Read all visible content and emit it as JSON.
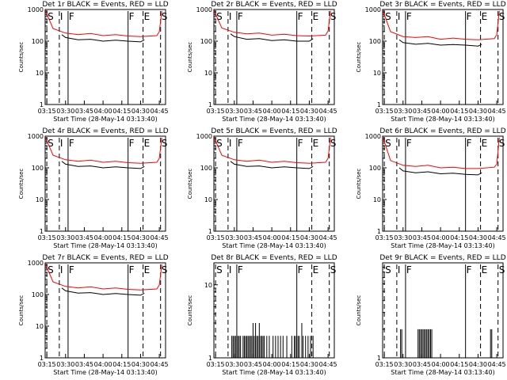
{
  "chart_data": [
    {
      "type": "line",
      "title": "Det 1r BLACK = Events, RED = LLD",
      "ylabel": "Counts/sec",
      "xlabel": "Start Time (28-May-14 03:13:40)",
      "x_ticks": [
        "03:15",
        "03:30",
        "03:45",
        "04:00",
        "04:15",
        "04:30",
        "04:45"
      ],
      "y_ticks": [
        "1",
        "10",
        "100",
        "1000"
      ],
      "ylim": [
        1,
        1000
      ],
      "yscale": "log",
      "markers": [
        {
          "label": "S",
          "style": "dashed",
          "time": "03:15"
        },
        {
          "label": "I",
          "style": "dashed",
          "time": "03:25"
        },
        {
          "label": "F",
          "style": "solid",
          "time": "03:32"
        },
        {
          "label": "F",
          "style": "solid",
          "time": "04:20"
        },
        {
          "label": "E",
          "style": "dashed",
          "time": "04:32"
        },
        {
          "label": "S",
          "style": "dashed",
          "time": "04:46"
        }
      ],
      "series": [
        {
          "name": "Events",
          "color": "#000000",
          "x": [
            "03:27",
            "03:30",
            "03:40",
            "03:50",
            "04:00",
            "04:10",
            "04:20",
            "04:30",
            "04:33"
          ],
          "y": [
            160,
            130,
            110,
            115,
            100,
            108,
            100,
            95,
            110
          ]
        },
        {
          "name": "LLD",
          "color": "#ff0000",
          "x": [
            "03:14",
            "03:20",
            "03:30",
            "03:40",
            "03:50",
            "04:00",
            "04:10",
            "04:20",
            "04:30",
            "04:43",
            "04:45",
            "04:47"
          ],
          "y": [
            900,
            250,
            180,
            160,
            175,
            150,
            160,
            145,
            140,
            150,
            200,
            900
          ]
        }
      ]
    },
    {
      "type": "line",
      "title": "Det 2r BLACK = Events, RED = LLD",
      "ylabel": "Counts/sec",
      "xlabel": "Start Time (28-May-14 03:13:40)",
      "x_ticks": [
        "03:15",
        "03:30",
        "03:45",
        "04:00",
        "04:15",
        "04:30",
        "04:45"
      ],
      "y_ticks": [
        "1",
        "10",
        "100",
        "1000"
      ],
      "ylim": [
        1,
        1000
      ],
      "yscale": "log",
      "markers": [
        {
          "label": "S",
          "style": "dashed",
          "time": "03:15"
        },
        {
          "label": "I",
          "style": "dashed",
          "time": "03:25"
        },
        {
          "label": "F",
          "style": "solid",
          "time": "03:32"
        },
        {
          "label": "F",
          "style": "solid",
          "time": "04:20"
        },
        {
          "label": "E",
          "style": "dashed",
          "time": "04:32"
        },
        {
          "label": "S",
          "style": "dashed",
          "time": "04:46"
        }
      ],
      "series": [
        {
          "name": "Events",
          "color": "#000000",
          "x": [
            "03:27",
            "03:30",
            "03:40",
            "03:50",
            "04:00",
            "04:10",
            "04:20",
            "04:30",
            "04:33"
          ],
          "y": [
            170,
            140,
            115,
            120,
            105,
            110,
            100,
            100,
            120
          ]
        },
        {
          "name": "LLD",
          "color": "#ff0000",
          "x": [
            "03:14",
            "03:20",
            "03:30",
            "03:40",
            "03:50",
            "04:00",
            "04:10",
            "04:20",
            "04:30",
            "04:43",
            "04:45",
            "04:47"
          ],
          "y": [
            900,
            260,
            190,
            170,
            180,
            155,
            165,
            150,
            145,
            155,
            210,
            900
          ]
        }
      ]
    },
    {
      "type": "line",
      "title": "Det 3r BLACK = Events, RED = LLD",
      "ylabel": "Counts/sec",
      "xlabel": "Start Time (28-May-14 03:13:40)",
      "x_ticks": [
        "03:15",
        "03:30",
        "03:45",
        "04:00",
        "04:15",
        "04:30",
        "04:45"
      ],
      "y_ticks": [
        "1",
        "10",
        "100",
        "1000"
      ],
      "ylim": [
        1,
        1000
      ],
      "yscale": "log",
      "markers": [
        {
          "label": "S",
          "style": "dashed",
          "time": "03:15"
        },
        {
          "label": "I",
          "style": "dashed",
          "time": "03:25"
        },
        {
          "label": "F",
          "style": "solid",
          "time": "03:32"
        },
        {
          "label": "F",
          "style": "solid",
          "time": "04:20"
        },
        {
          "label": "E",
          "style": "dashed",
          "time": "04:32"
        },
        {
          "label": "S",
          "style": "dashed",
          "time": "04:46"
        }
      ],
      "series": [
        {
          "name": "Events",
          "color": "#000000",
          "x": [
            "03:27",
            "03:30",
            "03:40",
            "03:50",
            "04:00",
            "04:10",
            "04:20",
            "04:30",
            "04:33"
          ],
          "y": [
            110,
            90,
            80,
            85,
            75,
            78,
            75,
            70,
            80
          ]
        },
        {
          "name": "LLD",
          "color": "#ff0000",
          "x": [
            "03:14",
            "03:20",
            "03:30",
            "03:40",
            "03:50",
            "04:00",
            "04:10",
            "04:20",
            "04:30",
            "04:43",
            "04:45",
            "04:47"
          ],
          "y": [
            900,
            200,
            140,
            130,
            140,
            115,
            125,
            115,
            110,
            120,
            160,
            900
          ]
        }
      ]
    },
    {
      "type": "line",
      "title": "Det 4r BLACK = Events, RED = LLD",
      "ylabel": "Counts/sec",
      "xlabel": "Start Time (28-May-14 03:13:40)",
      "x_ticks": [
        "03:15",
        "03:30",
        "03:45",
        "04:00",
        "04:15",
        "04:30",
        "04:45"
      ],
      "y_ticks": [
        "1",
        "10",
        "100",
        "1000"
      ],
      "ylim": [
        1,
        1000
      ],
      "yscale": "log",
      "markers": [
        {
          "label": "S",
          "style": "dashed",
          "time": "03:15"
        },
        {
          "label": "I",
          "style": "dashed",
          "time": "03:25"
        },
        {
          "label": "F",
          "style": "solid",
          "time": "03:32"
        },
        {
          "label": "F",
          "style": "solid",
          "time": "04:20"
        },
        {
          "label": "E",
          "style": "dashed",
          "time": "04:32"
        },
        {
          "label": "S",
          "style": "dashed",
          "time": "04:46"
        }
      ],
      "series": [
        {
          "name": "Events",
          "color": "#000000",
          "x": [
            "03:27",
            "03:30",
            "03:40",
            "03:50",
            "04:00",
            "04:10",
            "04:20",
            "04:30",
            "04:33"
          ],
          "y": [
            160,
            130,
            110,
            115,
            100,
            108,
            100,
            95,
            110
          ]
        },
        {
          "name": "LLD",
          "color": "#ff0000",
          "x": [
            "03:14",
            "03:20",
            "03:30",
            "03:40",
            "03:50",
            "04:00",
            "04:10",
            "04:20",
            "04:30",
            "04:43",
            "04:45",
            "04:47"
          ],
          "y": [
            900,
            250,
            180,
            160,
            175,
            150,
            160,
            145,
            140,
            150,
            200,
            900
          ]
        }
      ]
    },
    {
      "type": "line",
      "title": "Det 5r BLACK = Events, RED = LLD",
      "ylabel": "Counts/sec",
      "xlabel": "Start Time (28-May-14 03:13:40)",
      "x_ticks": [
        "03:15",
        "03:30",
        "03:45",
        "04:00",
        "04:15",
        "04:30",
        "04:45"
      ],
      "y_ticks": [
        "1",
        "10",
        "100",
        "1000"
      ],
      "ylim": [
        1,
        1000
      ],
      "yscale": "log",
      "markers": [
        {
          "label": "S",
          "style": "dashed",
          "time": "03:15"
        },
        {
          "label": "I",
          "style": "dashed",
          "time": "03:25"
        },
        {
          "label": "F",
          "style": "solid",
          "time": "03:32"
        },
        {
          "label": "F",
          "style": "solid",
          "time": "04:20"
        },
        {
          "label": "E",
          "style": "dashed",
          "time": "04:32"
        },
        {
          "label": "S",
          "style": "dashed",
          "time": "04:46"
        }
      ],
      "series": [
        {
          "name": "Events",
          "color": "#000000",
          "x": [
            "03:27",
            "03:30",
            "03:40",
            "03:50",
            "04:00",
            "04:10",
            "04:20",
            "04:30",
            "04:33"
          ],
          "y": [
            160,
            130,
            110,
            115,
            100,
            108,
            100,
            95,
            110
          ]
        },
        {
          "name": "LLD",
          "color": "#ff0000",
          "x": [
            "03:14",
            "03:20",
            "03:30",
            "03:40",
            "03:50",
            "04:00",
            "04:10",
            "04:20",
            "04:30",
            "04:43",
            "04:45",
            "04:47"
          ],
          "y": [
            900,
            250,
            180,
            160,
            175,
            150,
            160,
            145,
            140,
            150,
            200,
            900
          ]
        }
      ]
    },
    {
      "type": "line",
      "title": "Det 6r BLACK = Events, RED = LLD",
      "ylabel": "Counts/sec",
      "xlabel": "Start Time (28-May-14 03:13:40)",
      "x_ticks": [
        "03:15",
        "03:30",
        "03:45",
        "04:00",
        "04:15",
        "04:30",
        "04:45"
      ],
      "y_ticks": [
        "1",
        "10",
        "100",
        "1000"
      ],
      "ylim": [
        1,
        1000
      ],
      "yscale": "log",
      "markers": [
        {
          "label": "S",
          "style": "dashed",
          "time": "03:15"
        },
        {
          "label": "I",
          "style": "dashed",
          "time": "03:25"
        },
        {
          "label": "F",
          "style": "solid",
          "time": "03:32"
        },
        {
          "label": "F",
          "style": "solid",
          "time": "04:20"
        },
        {
          "label": "E",
          "style": "dashed",
          "time": "04:32"
        },
        {
          "label": "S",
          "style": "dashed",
          "time": "04:46"
        }
      ],
      "series": [
        {
          "name": "Events",
          "color": "#000000",
          "x": [
            "03:27",
            "03:30",
            "03:40",
            "03:50",
            "04:00",
            "04:10",
            "04:20",
            "04:30",
            "04:33"
          ],
          "y": [
            100,
            80,
            70,
            75,
            65,
            68,
            62,
            60,
            70
          ]
        },
        {
          "name": "LLD",
          "color": "#ff0000",
          "x": [
            "03:14",
            "03:20",
            "03:30",
            "03:40",
            "03:50",
            "04:00",
            "04:10",
            "04:20",
            "04:30",
            "04:43",
            "04:45",
            "04:47"
          ],
          "y": [
            900,
            170,
            120,
            110,
            120,
            100,
            105,
            95,
            95,
            105,
            130,
            900
          ]
        }
      ]
    },
    {
      "type": "line",
      "title": "Det 7r BLACK = Events, RED = LLD",
      "ylabel": "Counts/sec",
      "xlabel": "Start Time (28-May-14 03:13:40)",
      "x_ticks": [
        "03:15",
        "03:30",
        "03:45",
        "04:00",
        "04:15",
        "04:30",
        "04:45"
      ],
      "y_ticks": [
        "1",
        "10",
        "100",
        "1000"
      ],
      "ylim": [
        1,
        1000
      ],
      "yscale": "log",
      "markers": [
        {
          "label": "S",
          "style": "dashed",
          "time": "03:15"
        },
        {
          "label": "I",
          "style": "dashed",
          "time": "03:25"
        },
        {
          "label": "F",
          "style": "solid",
          "time": "03:32"
        },
        {
          "label": "F",
          "style": "solid",
          "time": "04:20"
        },
        {
          "label": "E",
          "style": "dashed",
          "time": "04:32"
        },
        {
          "label": "S",
          "style": "dashed",
          "time": "04:46"
        }
      ],
      "series": [
        {
          "name": "Events",
          "color": "#000000",
          "x": [
            "03:27",
            "03:30",
            "03:40",
            "03:50",
            "04:00",
            "04:10",
            "04:20",
            "04:30",
            "04:33"
          ],
          "y": [
            160,
            130,
            110,
            115,
            100,
            108,
            100,
            95,
            110
          ]
        },
        {
          "name": "LLD",
          "color": "#ff0000",
          "x": [
            "03:14",
            "03:20",
            "03:30",
            "03:40",
            "03:50",
            "04:00",
            "04:10",
            "04:20",
            "04:30",
            "04:43",
            "04:45",
            "04:47"
          ],
          "y": [
            900,
            250,
            180,
            160,
            175,
            150,
            160,
            145,
            140,
            150,
            200,
            900
          ]
        }
      ]
    },
    {
      "type": "line",
      "title": "Det 8r BLACK = Events, RED = LLD",
      "ylabel": "Counts/sec",
      "xlabel": "Start Time (28-May-14 03:13:40)",
      "x_ticks": [
        "03:15",
        "03:30",
        "03:45",
        "04:00",
        "04:15",
        "04:30",
        "04:45"
      ],
      "y_ticks": [
        "1",
        "10"
      ],
      "ylim": [
        1,
        20
      ],
      "yscale": "log",
      "markers": [
        {
          "label": "S",
          "style": "dashed",
          "time": "03:15"
        },
        {
          "label": "I",
          "style": "dashed",
          "time": "03:25"
        },
        {
          "label": "F",
          "style": "solid",
          "time": "03:32"
        },
        {
          "label": "F",
          "style": "solid",
          "time": "04:20"
        },
        {
          "label": "E",
          "style": "dashed",
          "time": "04:32"
        },
        {
          "label": "S",
          "style": "dashed",
          "time": "04:46"
        }
      ],
      "series": [
        {
          "name": "Events",
          "color": "#000000",
          "spikes": true,
          "x": [
            "03:28",
            "03:29",
            "03:30",
            "03:31",
            "03:32",
            "03:33",
            "03:34",
            "03:35",
            "03:37",
            "03:38",
            "03:39",
            "03:40",
            "03:41",
            "03:42",
            "03:43",
            "03:44",
            "03:45",
            "03:46",
            "03:47",
            "03:48",
            "03:49",
            "03:50",
            "03:51",
            "03:52",
            "03:53",
            "03:54",
            "03:56",
            "03:58",
            "04:01",
            "04:03",
            "04:05",
            "04:07",
            "04:09",
            "04:12",
            "04:16",
            "04:18",
            "04:19",
            "04:21",
            "04:22",
            "04:24",
            "04:25",
            "04:27",
            "04:29",
            "04:31",
            "04:33"
          ],
          "y": [
            2,
            2,
            2,
            2,
            2,
            2,
            2,
            2,
            2,
            2,
            2,
            2,
            2,
            2,
            2,
            2,
            3,
            2,
            3,
            2,
            2,
            3,
            2,
            2,
            2,
            2,
            2,
            2,
            2,
            2,
            2,
            2,
            2,
            2,
            2,
            2,
            2,
            2,
            2,
            3,
            2,
            2,
            2,
            2,
            2
          ]
        }
      ]
    },
    {
      "type": "line",
      "title": "Det 9r BLACK = Events, RED = LLD",
      "ylabel": "Counts/sec",
      "xlabel": "Start Time (28-May-14 03:13:40)",
      "x_ticks": [
        "03:15",
        "03:30",
        "03:45",
        "04:00",
        "04:15",
        "04:30",
        "04:45"
      ],
      "y_ticks": [
        "1"
      ],
      "ylim": [
        1,
        10
      ],
      "yscale": "log",
      "markers": [
        {
          "label": "S",
          "style": "dashed",
          "time": "03:15"
        },
        {
          "label": "I",
          "style": "dashed",
          "time": "03:25"
        },
        {
          "label": "F",
          "style": "solid",
          "time": "03:32"
        },
        {
          "label": "F",
          "style": "solid",
          "time": "04:20"
        },
        {
          "label": "E",
          "style": "dashed",
          "time": "04:32"
        },
        {
          "label": "S",
          "style": "dashed",
          "time": "04:46"
        }
      ],
      "series": [
        {
          "name": "Events",
          "color": "#000000",
          "spikes": true,
          "x": [
            "03:28",
            "03:29",
            "03:42",
            "03:43",
            "03:44",
            "03:45",
            "03:46",
            "03:47",
            "03:48",
            "03:49",
            "03:50",
            "03:51",
            "03:52",
            "03:53",
            "04:40",
            "04:41"
          ],
          "y": [
            2,
            2,
            2,
            2,
            2,
            2,
            2,
            2,
            2,
            2,
            2,
            2,
            2,
            2,
            2,
            2
          ]
        }
      ]
    }
  ]
}
